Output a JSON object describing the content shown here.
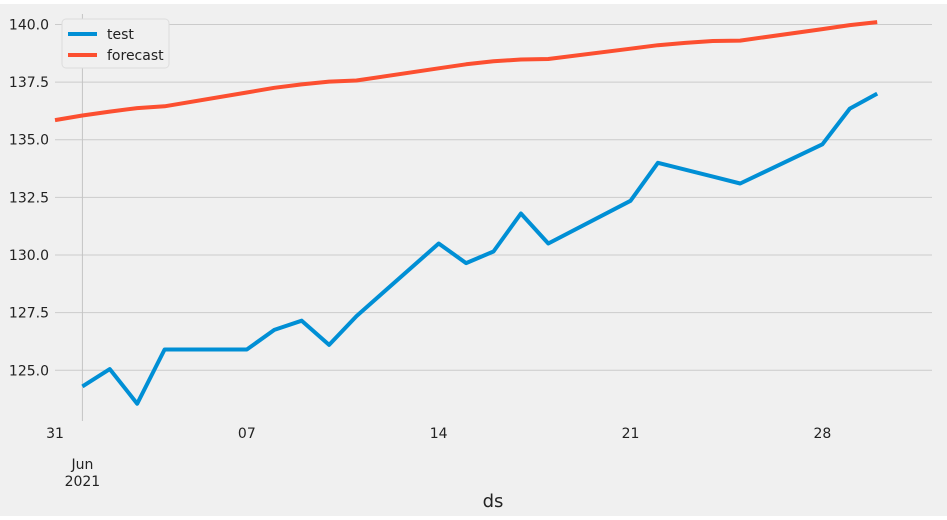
{
  "chart_data": {
    "type": "line",
    "title": "",
    "xlabel": "ds",
    "ylabel": "",
    "x_range": [
      "2021-05-31",
      "2021-07-02"
    ],
    "ylim": [
      122.8,
      140.8
    ],
    "grid": true,
    "legend_position": "top-left",
    "y_ticks": [
      "125.0",
      "127.5",
      "130.0",
      "132.5",
      "135.0",
      "137.5",
      "140.0"
    ],
    "x_ticks": [
      {
        "date": "2021-05-31",
        "label": "31"
      },
      {
        "date": "2021-06-07",
        "label": "07"
      },
      {
        "date": "2021-06-14",
        "label": "14"
      },
      {
        "date": "2021-06-21",
        "label": "21"
      },
      {
        "date": "2021-06-28",
        "label": "28"
      }
    ],
    "x_major_label": {
      "date": "2021-06-01",
      "label": "Jun\n2021"
    },
    "series": [
      {
        "name": "test",
        "color": "#008fd5",
        "points": [
          {
            "x": "2021-06-01",
            "y": 124.3
          },
          {
            "x": "2021-06-02",
            "y": 125.05
          },
          {
            "x": "2021-06-03",
            "y": 123.55
          },
          {
            "x": "2021-06-04",
            "y": 125.9
          },
          {
            "x": "2021-06-07",
            "y": 125.9
          },
          {
            "x": "2021-06-08",
            "y": 126.75
          },
          {
            "x": "2021-06-09",
            "y": 127.15
          },
          {
            "x": "2021-06-10",
            "y": 126.1
          },
          {
            "x": "2021-06-11",
            "y": 127.35
          },
          {
            "x": "2021-06-14",
            "y": 130.5
          },
          {
            "x": "2021-06-15",
            "y": 129.65
          },
          {
            "x": "2021-06-16",
            "y": 130.15
          },
          {
            "x": "2021-06-17",
            "y": 131.8
          },
          {
            "x": "2021-06-18",
            "y": 130.5
          },
          {
            "x": "2021-06-21",
            "y": 132.35
          },
          {
            "x": "2021-06-22",
            "y": 134.0
          },
          {
            "x": "2021-06-23",
            "y": 133.7
          },
          {
            "x": "2021-06-24",
            "y": 133.4
          },
          {
            "x": "2021-06-25",
            "y": 133.1
          },
          {
            "x": "2021-06-28",
            "y": 134.8
          },
          {
            "x": "2021-06-29",
            "y": 136.35
          },
          {
            "x": "2021-06-30",
            "y": 137.0
          }
        ]
      },
      {
        "name": "forecast",
        "color": "#fc4f30",
        "points": [
          {
            "x": "2021-05-31",
            "y": 135.85
          },
          {
            "x": "2021-06-01",
            "y": 136.05
          },
          {
            "x": "2021-06-02",
            "y": 136.22
          },
          {
            "x": "2021-06-03",
            "y": 136.37
          },
          {
            "x": "2021-06-04",
            "y": 136.45
          },
          {
            "x": "2021-06-07",
            "y": 137.05
          },
          {
            "x": "2021-06-08",
            "y": 137.25
          },
          {
            "x": "2021-06-09",
            "y": 137.4
          },
          {
            "x": "2021-06-10",
            "y": 137.52
          },
          {
            "x": "2021-06-11",
            "y": 137.57
          },
          {
            "x": "2021-06-14",
            "y": 138.1
          },
          {
            "x": "2021-06-15",
            "y": 138.27
          },
          {
            "x": "2021-06-16",
            "y": 138.4
          },
          {
            "x": "2021-06-17",
            "y": 138.48
          },
          {
            "x": "2021-06-18",
            "y": 138.5
          },
          {
            "x": "2021-06-21",
            "y": 138.95
          },
          {
            "x": "2021-06-22",
            "y": 139.1
          },
          {
            "x": "2021-06-23",
            "y": 139.2
          },
          {
            "x": "2021-06-24",
            "y": 139.28
          },
          {
            "x": "2021-06-25",
            "y": 139.3
          },
          {
            "x": "2021-06-28",
            "y": 139.8
          },
          {
            "x": "2021-06-29",
            "y": 139.97
          },
          {
            "x": "2021-06-30",
            "y": 140.1
          }
        ]
      }
    ]
  }
}
